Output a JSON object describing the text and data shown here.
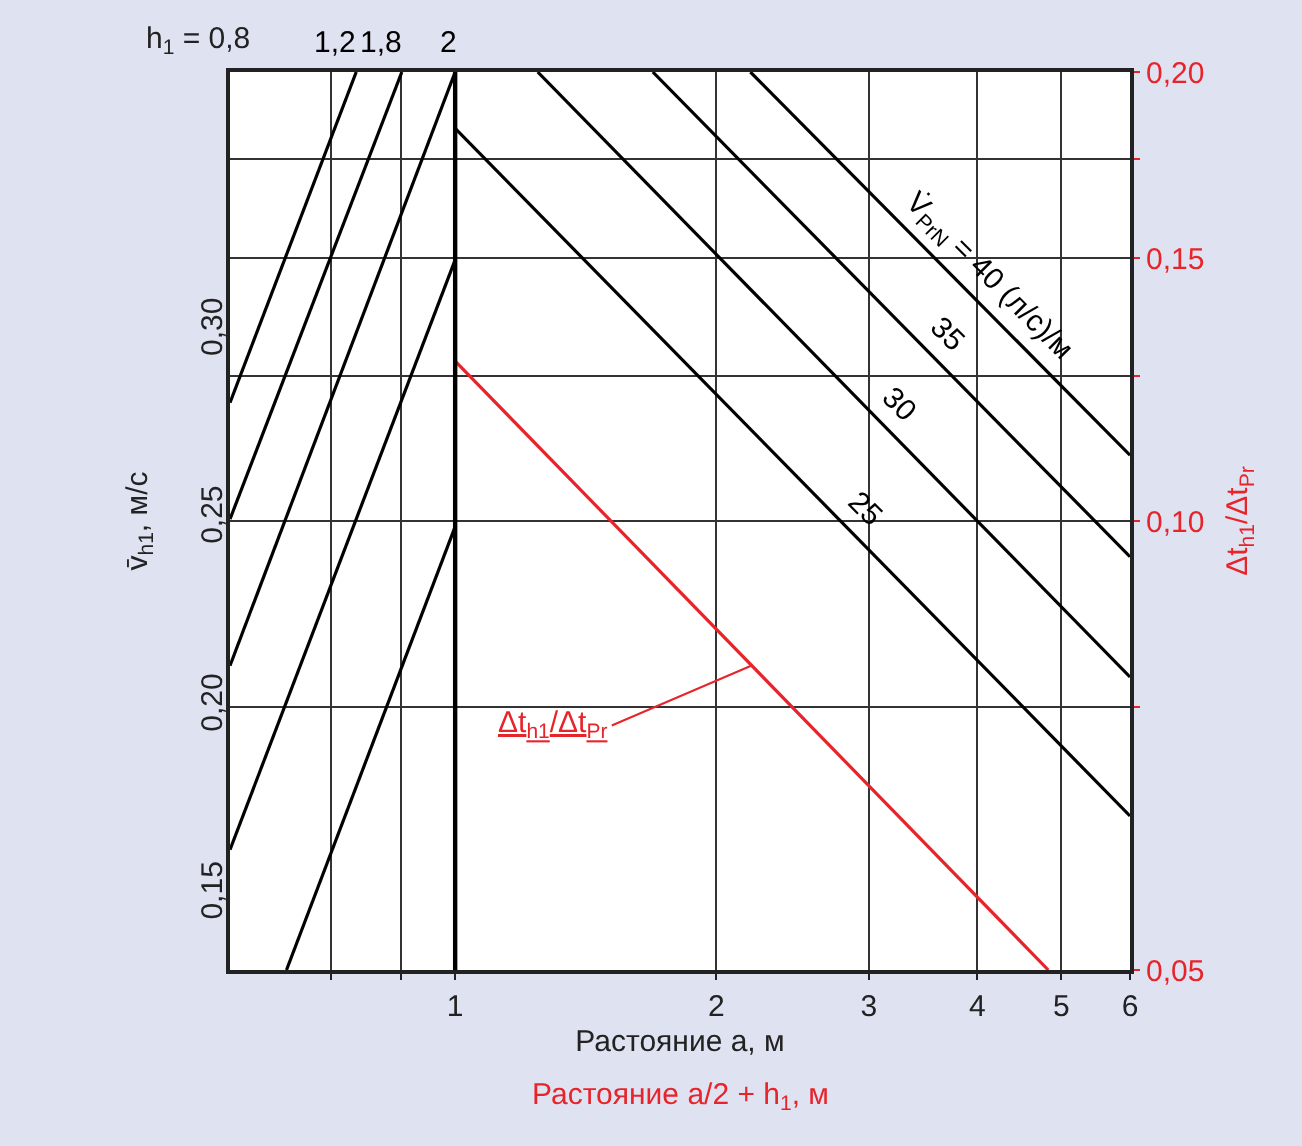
{
  "chart_data": {
    "type": "line",
    "xlabel": "Растояние a, м",
    "ylabel": "Δt$_{h1}$/Δt$_{Pr}$",
    "y2label": "v̄$_{h1}$, м/с",
    "annotations": [
      "Растояние a/2 + h$_{1}$, м",
      "h$_{1}$ = 0,8"
    ],
    "log": "xy",
    "xlim": [
      0.55,
      6
    ],
    "xticks": [
      {
        "value": 0.72,
        "label": null
      },
      {
        "value": 0.865,
        "label": null
      },
      1,
      2,
      3,
      4,
      5,
      6
    ],
    "ylim": [
      0.05,
      0.2
    ],
    "yticks": [
      {
        "value": 0.05,
        "label": "0,05"
      },
      {
        "value": 0.075,
        "label": null
      },
      {
        "value": 0.1,
        "label": "0,10"
      },
      {
        "value": 0.125,
        "label": null
      },
      {
        "value": 0.15,
        "label": "0,15"
      },
      {
        "value": 0.175,
        "label": null
      },
      {
        "value": 0.2,
        "label": "0,20"
      }
    ],
    "y2lim": [
      0.13,
      0.369
    ],
    "y2ticks": [
      {
        "value": 0.15,
        "label": "0,15"
      },
      {
        "value": 0.2,
        "label": "0,20"
      },
      {
        "value": 0.25,
        "label": "0,25"
      },
      {
        "value": 0.3,
        "label": "0,30"
      }
    ],
    "grid": true,
    "legend": false,
    "marker": "none",
    "line_style": "solid",
    "ref_lines": [
      {
        "axis": "x",
        "value": 1,
        "color": "#000000"
      }
    ],
    "series": [
      {
        "name": "1,2",
        "color": "#000000",
        "axis": "y2",
        "x": [
          0.55,
          0.769
        ],
        "values": [
          0.281,
          0.369
        ]
      },
      {
        "name": "1,8",
        "color": "#000000",
        "axis": "y2",
        "x": [
          0.55,
          0.868
        ],
        "values": [
          0.25,
          0.369
        ]
      },
      {
        "name": "2",
        "color": "#000000",
        "axis": "y2",
        "x": [
          0.55,
          1
        ],
        "values": [
          0.211,
          0.369
        ]
      },
      {
        "color": "#000000",
        "axis": "y2",
        "x": [
          0.55,
          1
        ],
        "values": [
          0.162,
          0.319
        ]
      },
      {
        "color": "#000000",
        "axis": "y2",
        "x": [
          0.639,
          1
        ],
        "values": [
          0.13,
          0.248
        ]
      },
      {
        "name": "25",
        "color": "#000000",
        "axis": "y2",
        "x": [
          1,
          6
        ],
        "values": [
          0.354,
          0.171
        ]
      },
      {
        "name": "30",
        "color": "#000000",
        "axis": "y2",
        "x": [
          1.245,
          6
        ],
        "values": [
          0.369,
          0.208
        ]
      },
      {
        "name": "35",
        "color": "#000000",
        "axis": "y2",
        "x": [
          1.69,
          6
        ],
        "values": [
          0.369,
          0.24
        ]
      },
      {
        "name": "V̇$_{PrN}$ = 40 (л/с)/м",
        "color": "#000000",
        "axis": "y2",
        "x": [
          2.19,
          6
        ],
        "values": [
          0.369,
          0.267
        ]
      },
      {
        "name": "Δt$_{h1}$/Δt$_{Pr}$",
        "color": "#e8242b",
        "x": [
          1,
          4.83
        ],
        "values": [
          0.128,
          0.05
        ]
      }
    ]
  }
}
